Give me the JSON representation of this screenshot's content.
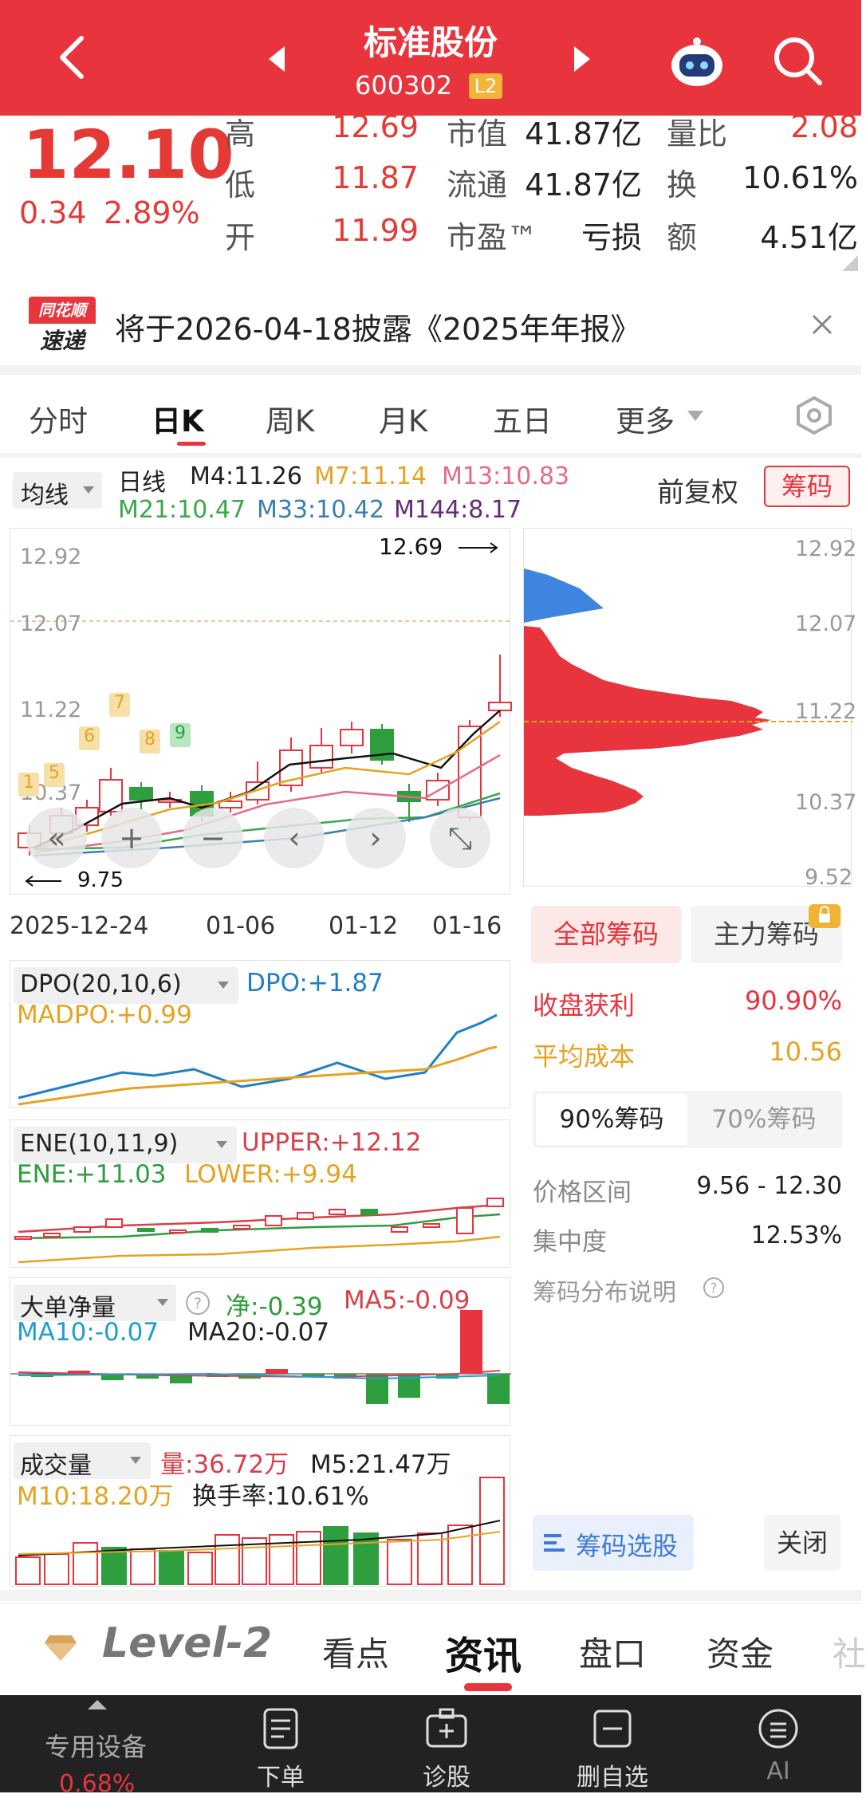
{
  "header": {
    "title": "标准股份",
    "code": "600302",
    "level_badge": "L2"
  },
  "quote": {
    "price": "12.10",
    "change": "0.34",
    "change_pct": "2.89%",
    "high_label": "高",
    "high": "12.69",
    "low_label": "低",
    "low": "11.87",
    "open_label": "开",
    "open": "11.99",
    "mcap_label": "市值",
    "mcap": "41.87亿",
    "float_label": "流通",
    "float": "41.87亿",
    "pe_label": "市盈™",
    "pe": "亏损",
    "vr_label": "量比",
    "vr": "2.08",
    "turn_label": "换",
    "turn": "10.61%",
    "amt_label": "额",
    "amt": "4.51亿"
  },
  "notice": {
    "logo_top": "同花顺",
    "logo_bottom": "速递",
    "text": "将于2026-04-18披露《2025年年报》"
  },
  "tabs": [
    "分时",
    "日K",
    "周K",
    "月K",
    "五日",
    "更多"
  ],
  "active_tab": "日K",
  "kline": {
    "ma_selector": "均线",
    "period_label": "日线",
    "m4": "M4:11.26",
    "m7": "M7:11.14",
    "m13": "M13:10.83",
    "m21": "M21:10.47",
    "m33": "M33:10.42",
    "m144": "M144:8.17",
    "adjust": "前复权",
    "chips_btn": "筹码",
    "y_labels": [
      "12.92",
      "12.07",
      "11.22",
      "10.37"
    ],
    "high_marker": "12.69",
    "low_marker": "9.75",
    "dates": [
      "2025-12-24",
      "01-06",
      "01-12",
      "01-16"
    ],
    "badges": [
      "1",
      "5",
      "6",
      "7",
      "8",
      "9"
    ]
  },
  "chips": {
    "y_labels": [
      "12.92",
      "12.07",
      "11.22",
      "10.37",
      "9.52"
    ],
    "tab_all": "全部筹码",
    "tab_main": "主力筹码",
    "profit_label": "收盘获利",
    "profit": "90.90%",
    "cost_label": "平均成本",
    "cost": "10.56",
    "sub_90": "90%筹码",
    "sub_70": "70%筹码",
    "range_label": "价格区间",
    "range": "9.56 - 12.30",
    "conc_label": "集中度",
    "conc": "12.53%",
    "desc": "筹码分布说明",
    "select_btn": "筹码选股",
    "close_btn": "关闭"
  },
  "dpo": {
    "name": "DPO(20,10,6)",
    "dpo": "DPO:+1.87",
    "madpo": "MADPO:+0.99"
  },
  "ene": {
    "name": "ENE(10,11,9)",
    "upper": "UPPER:+12.12",
    "ene": "ENE:+11.03",
    "lower": "LOWER:+9.94"
  },
  "bignet": {
    "name": "大单净量",
    "net": "净:-0.39",
    "ma5": "MA5:-0.09",
    "ma10": "MA10:-0.07",
    "ma20": "MA20:-0.07"
  },
  "volume": {
    "name": "成交量",
    "vol": "量:36.72万",
    "m5": "M5:21.47万",
    "m10": "M10:18.20万",
    "turn": "换手率:10.61%"
  },
  "bottomnav": {
    "level2": "Level-2",
    "items": [
      "看点",
      "资讯",
      "盘口",
      "资金",
      "社"
    ],
    "active": "资讯"
  },
  "dock": {
    "device": "专用设备",
    "device_pct": "0.68%",
    "items": [
      "下单",
      "诊股",
      "删自选",
      "AI"
    ]
  },
  "colors": {
    "red": "#e8343d",
    "green": "#2e9e3e",
    "blue": "#1f7fc4",
    "orange": "#e5a321"
  },
  "icons": [
    "back-arrow-icon",
    "prev-icon",
    "next-icon",
    "robot-icon",
    "search-icon",
    "close-icon",
    "settings-hex-icon"
  ]
}
